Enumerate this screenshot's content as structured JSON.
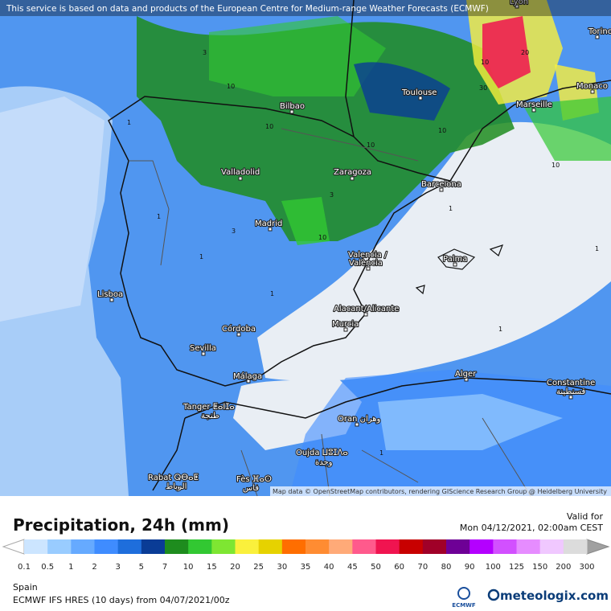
{
  "banner": "This service is based on data and products of the European Centre for Medium-range Weather Forecasts (ECMWF)",
  "attribution": "Map data © OpenStreetMap contributors, rendering GIScience Research Group @ Heidelberg University",
  "cities": [
    "Lyon",
    "Torino",
    "Monaco",
    "Toulouse",
    "Marseille",
    "Bilbao",
    "Valladolid",
    "Zaragoza",
    "Barcelona",
    "Madrid",
    "Valencia /",
    "València",
    "Palma",
    "Lisboa",
    "Alacant/Alicante",
    "Murcia",
    "Córdoba",
    "Sevilla",
    "Málaga",
    "Alger",
    "Constantine",
    "قسنطينة",
    "Tanger ⵟⴰⵏⵊⴰ",
    "طنجة",
    "Oran وهران",
    "Oujda ⵡⵓⵊⴷⴰ",
    "وجدة",
    "Rabat ⵕⴱⴰⵟ",
    "الرباط",
    "Fès ⴼⴰⵙ",
    "فاس"
  ],
  "contour_labels": [
    "10",
    "3",
    "10",
    "1",
    "10",
    "10",
    "3",
    "10",
    "20",
    "30",
    "10",
    "1",
    "3",
    "1",
    "1",
    "10",
    "1",
    "1",
    "1",
    "1"
  ],
  "legend": {
    "title": "Precipitation, 24h (mm)",
    "valid_label": "Valid for",
    "valid_time": "Mon 04/12/2021, 02:00am CEST",
    "labels": [
      "0.1",
      "0.5",
      "1",
      "2",
      "3",
      "5",
      "7",
      "10",
      "15",
      "20",
      "25",
      "30",
      "35",
      "40",
      "45",
      "50",
      "60",
      "70",
      "80",
      "90",
      "100",
      "125",
      "150",
      "200",
      "300"
    ],
    "colors": [
      "#cce5ff",
      "#99ccff",
      "#66aaff",
      "#3f8cff",
      "#1e6edc",
      "#0a3c96",
      "#1e8c1e",
      "#32c832",
      "#7ee632",
      "#faf03c",
      "#e6d200",
      "#ff6e00",
      "#ff8c32",
      "#ffaa78",
      "#ff5a8c",
      "#f01450",
      "#c80000",
      "#a00028",
      "#6e0096",
      "#b400ff",
      "#d250ff",
      "#e68cff",
      "#f0c8ff",
      "#dcdcdc"
    ]
  },
  "footer": {
    "region": "Spain",
    "model": "ECMWF IFS HRES (10 days) from 04/07/2021/00z",
    "ecmwf": "ECMWF",
    "brand": "meteologix.com"
  }
}
